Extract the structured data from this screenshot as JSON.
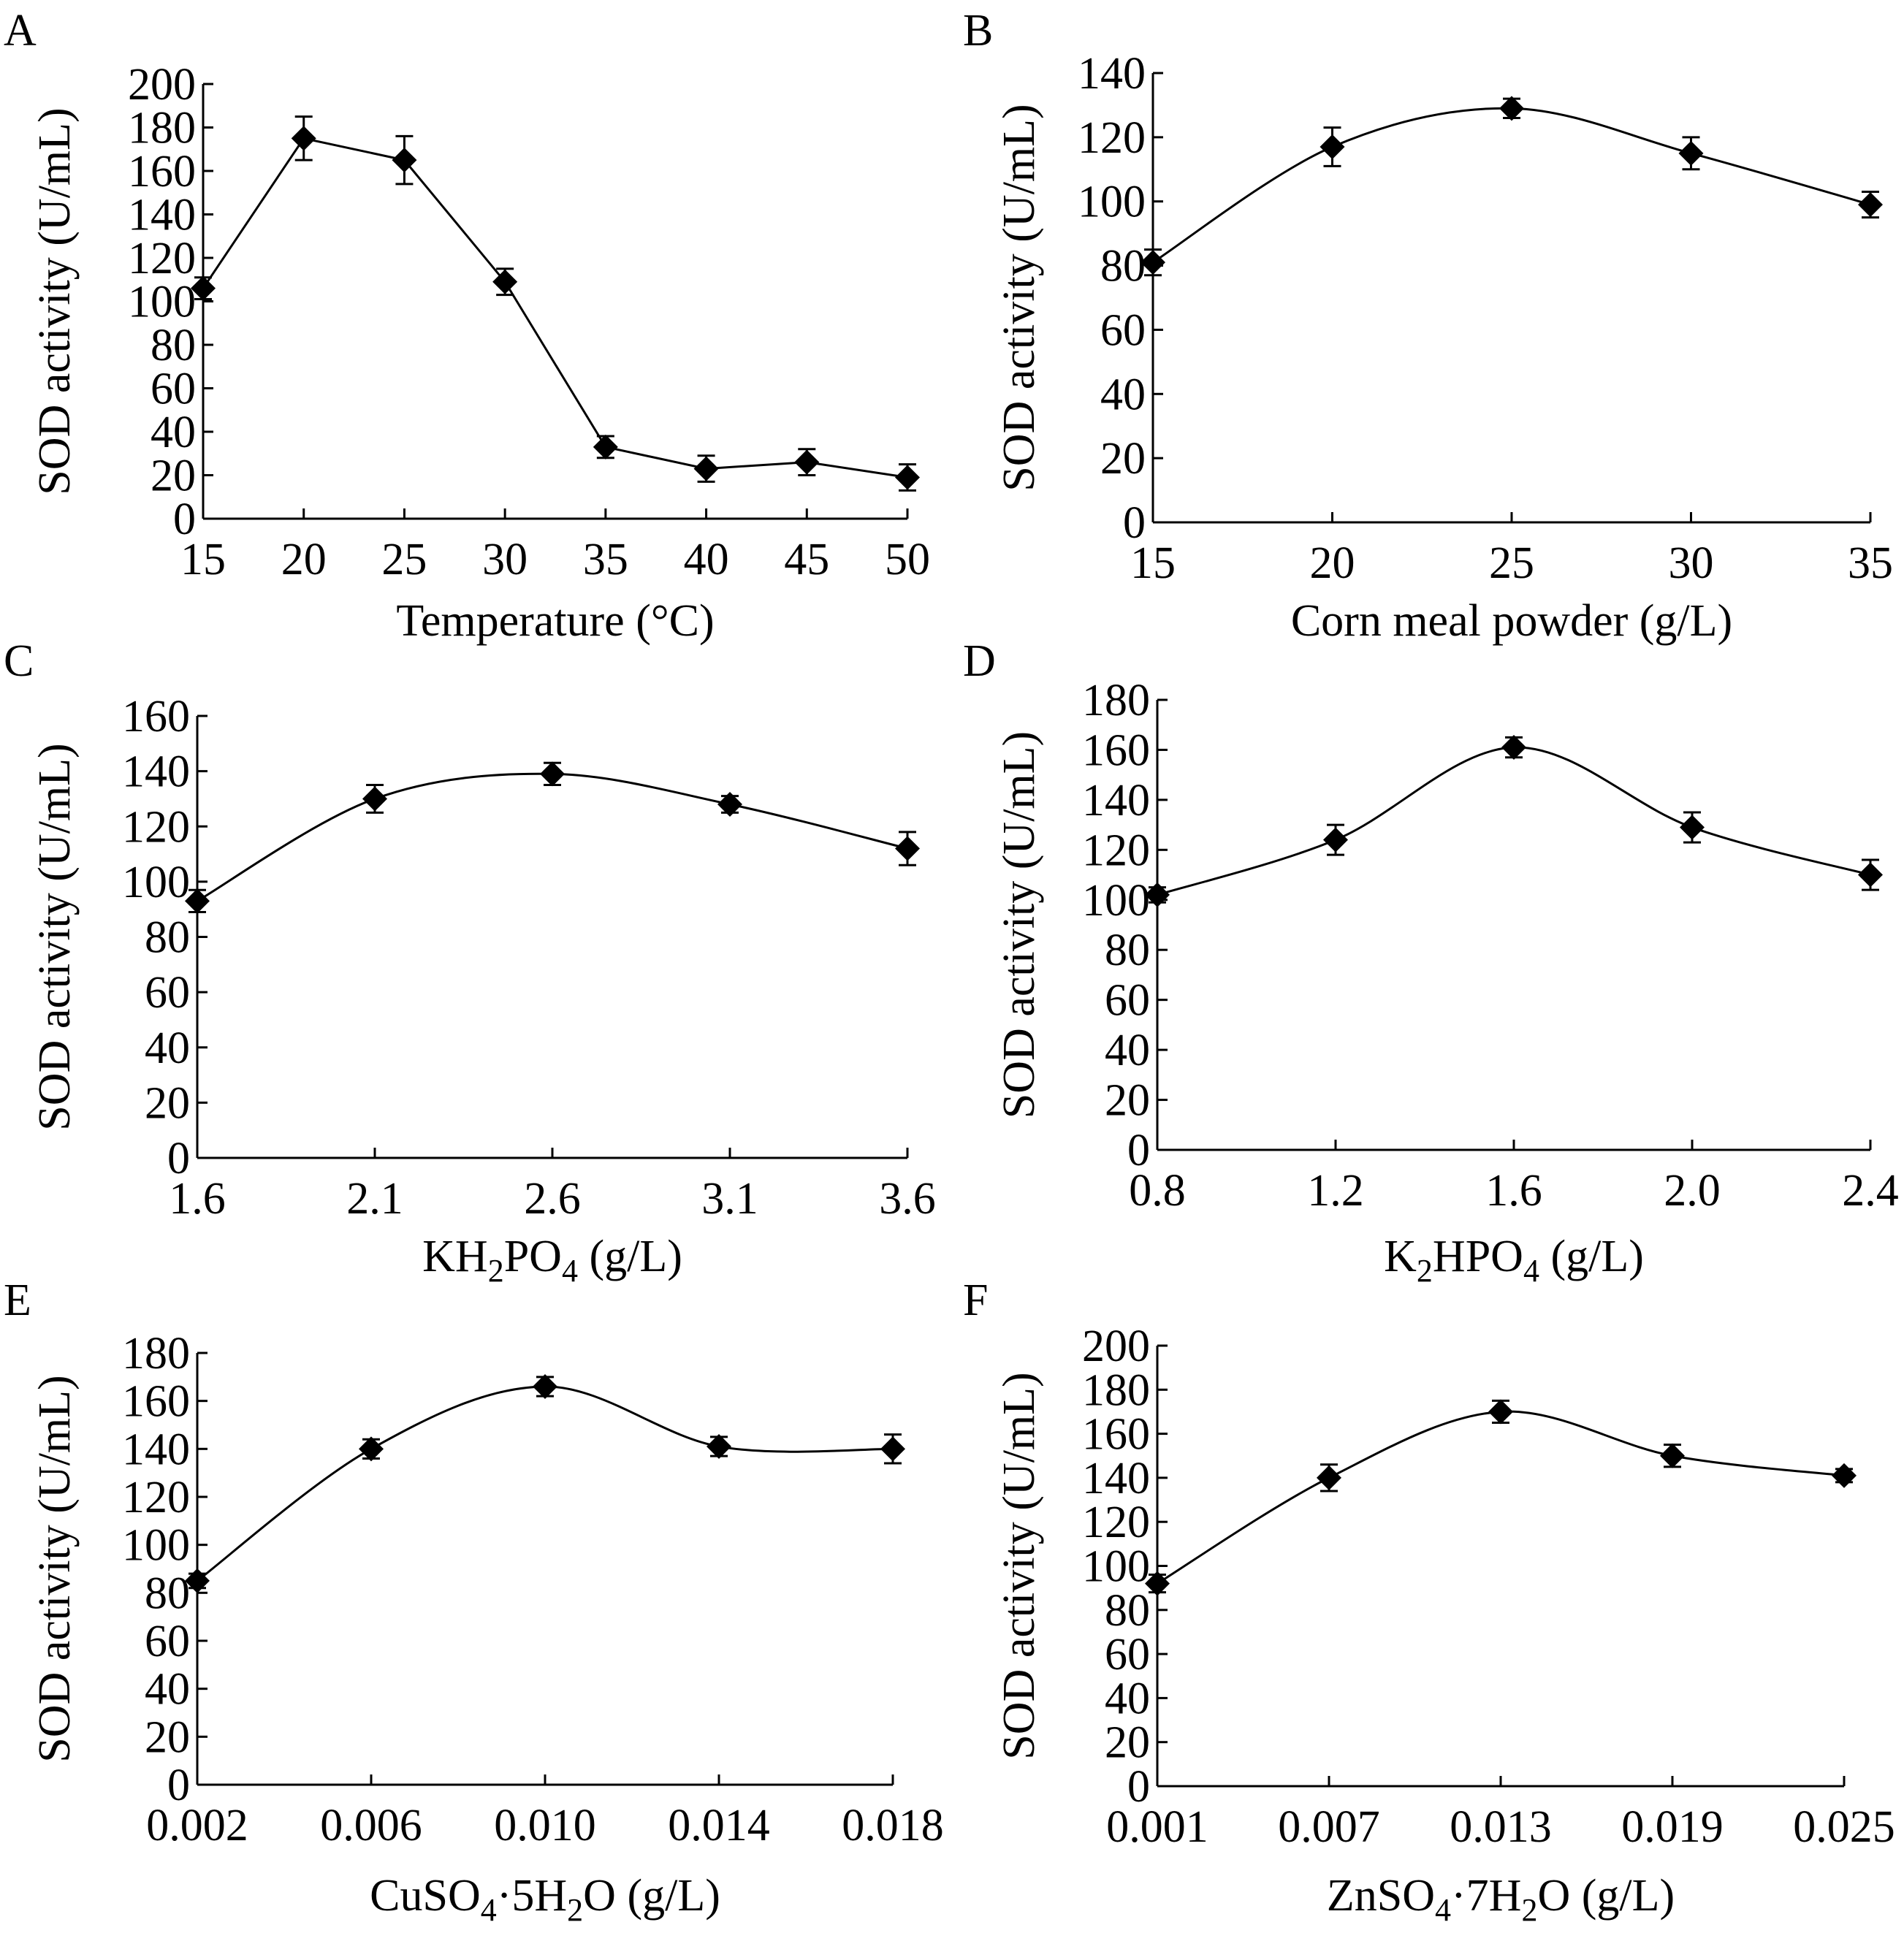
{
  "figure": {
    "ylabel": "SOD activity (U/mL)"
  },
  "chart_data": [
    {
      "panel": "A",
      "type": "line",
      "xlabel": "Temperature (°C)",
      "ylabel": "SOD activity (U/mL)",
      "x_ticks": [
        "15",
        "20",
        "25",
        "30",
        "35",
        "40",
        "45",
        "50"
      ],
      "xlim": [
        15,
        50
      ],
      "ylim": [
        0,
        200
      ],
      "y_ticks": [
        0,
        20,
        40,
        60,
        80,
        100,
        120,
        140,
        160,
        180,
        200
      ],
      "smooth": false,
      "x": [
        15,
        20,
        25,
        30,
        35,
        40,
        45,
        50
      ],
      "y": [
        106,
        175,
        165,
        109,
        33,
        23,
        26,
        19
      ],
      "error": [
        5,
        10,
        11,
        6,
        5,
        6,
        6,
        6
      ]
    },
    {
      "panel": "B",
      "type": "line",
      "xlabel": "Corn meal powder (g/L)",
      "ylabel": "SOD activity (U/mL)",
      "x_ticks": [
        "15",
        "20",
        "25",
        "30",
        "35"
      ],
      "xlim": [
        15,
        35
      ],
      "ylim": [
        0,
        140
      ],
      "y_ticks": [
        0,
        20,
        40,
        60,
        80,
        100,
        120,
        140
      ],
      "smooth": true,
      "x": [
        15,
        20,
        25,
        30,
        35
      ],
      "y": [
        81,
        117,
        129,
        115,
        99
      ],
      "error": [
        4,
        6,
        3,
        5,
        4
      ]
    },
    {
      "panel": "C",
      "type": "line",
      "xlabel_parts": [
        [
          "KH",
          ""
        ],
        [
          "2",
          "sub"
        ],
        [
          "PO",
          ""
        ],
        [
          "4",
          "sub"
        ],
        [
          " (g/L)",
          ""
        ]
      ],
      "ylabel": "SOD activity (U/mL)",
      "x_ticks": [
        "1.6",
        "2.1",
        "2.6",
        "3.1",
        "3.6"
      ],
      "xlim": [
        1.6,
        3.6
      ],
      "ylim": [
        0,
        160
      ],
      "y_ticks": [
        0,
        20,
        40,
        60,
        80,
        100,
        120,
        140,
        160
      ],
      "smooth": true,
      "x": [
        1.6,
        2.1,
        2.6,
        3.1,
        3.6
      ],
      "y": [
        93,
        130,
        139,
        128,
        112
      ],
      "error": [
        4,
        5,
        4,
        3,
        6
      ]
    },
    {
      "panel": "D",
      "type": "line",
      "xlabel_parts": [
        [
          "K",
          ""
        ],
        [
          "2",
          "sub"
        ],
        [
          "HPO",
          ""
        ],
        [
          "4",
          "sub"
        ],
        [
          " (g/L)",
          ""
        ]
      ],
      "ylabel": "SOD activity (U/mL)",
      "x_ticks": [
        "0.8",
        "1.2",
        "1.6",
        "2.0",
        "2.4"
      ],
      "xlim": [
        0.8,
        2.4
      ],
      "ylim": [
        0,
        180
      ],
      "y_ticks": [
        0,
        20,
        40,
        60,
        80,
        100,
        120,
        140,
        160,
        180
      ],
      "smooth": true,
      "x": [
        0.8,
        1.2,
        1.6,
        2.0,
        2.4
      ],
      "y": [
        102,
        124,
        161,
        129,
        110
      ],
      "error": [
        3,
        6,
        4,
        6,
        6
      ]
    },
    {
      "panel": "E",
      "type": "line",
      "xlabel_parts": [
        [
          "CuSO",
          ""
        ],
        [
          "4",
          "sub"
        ],
        [
          "·5H",
          ""
        ],
        [
          "2",
          "sub"
        ],
        [
          "O (g/L)",
          ""
        ]
      ],
      "ylabel": "SOD activity (U/mL)",
      "x_ticks": [
        "0.002",
        "0.006",
        "0.010",
        "0.014",
        "0.018"
      ],
      "xlim": [
        0.002,
        0.018
      ],
      "ylim": [
        0,
        180
      ],
      "y_ticks": [
        0,
        20,
        40,
        60,
        80,
        100,
        120,
        140,
        160,
        180
      ],
      "smooth": true,
      "x": [
        0.002,
        0.006,
        0.01,
        0.014,
        0.018
      ],
      "y": [
        85,
        140,
        166,
        141,
        140
      ],
      "error": [
        3,
        4,
        4,
        4,
        6
      ]
    },
    {
      "panel": "F",
      "type": "line",
      "xlabel_parts": [
        [
          "ZnSO",
          ""
        ],
        [
          "4",
          "sub"
        ],
        [
          "·7H",
          ""
        ],
        [
          "2",
          "sub"
        ],
        [
          "O (g/L)",
          ""
        ]
      ],
      "ylabel": "SOD activity (U/mL)",
      "x_ticks": [
        "0.001",
        "0.007",
        "0.013",
        "0.019",
        "0.025"
      ],
      "xlim": [
        0.001,
        0.025
      ],
      "ylim": [
        0,
        200
      ],
      "y_ticks": [
        0,
        20,
        40,
        60,
        80,
        100,
        120,
        140,
        160,
        180,
        200
      ],
      "smooth": true,
      "x": [
        0.001,
        0.007,
        0.013,
        0.019,
        0.025
      ],
      "y": [
        92,
        140,
        170,
        150,
        141
      ],
      "error": [
        4,
        6,
        5,
        5,
        3
      ]
    }
  ]
}
